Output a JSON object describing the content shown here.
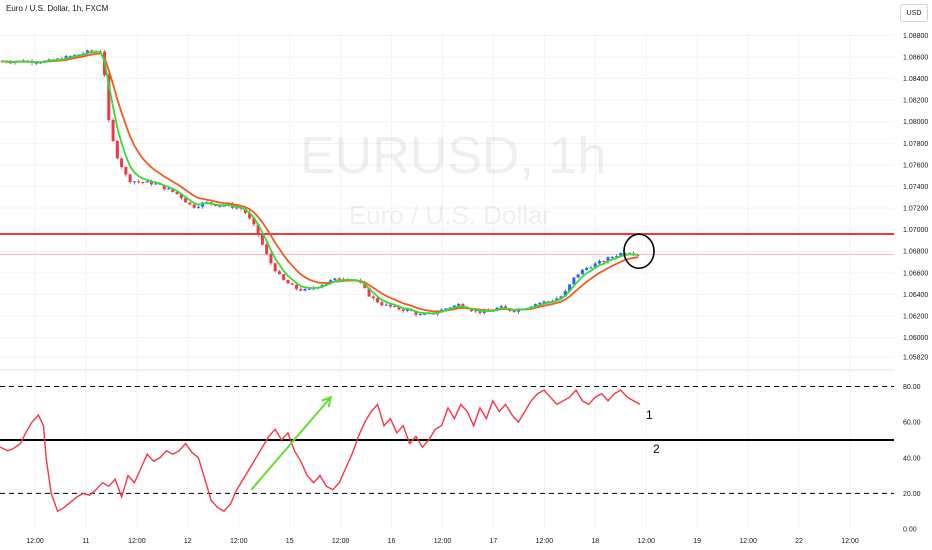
{
  "header": {
    "symbol_line": "Euro / U.S. Dollar, 1h, FXCM"
  },
  "currency_label": "USD",
  "watermark": {
    "symbol": "EURUSD, 1h",
    "description": "Euro / U.S. Dollar"
  },
  "colors": {
    "bull_candle": "#2962ff",
    "bear_candle": "#f23645",
    "fast_ma": "#33dd33",
    "slow_ma": "#f05a23",
    "resistance_line": "#f23645",
    "oscillator_line": "#f23645",
    "trend_arrow": "#66dd33",
    "axis_text": "#131722",
    "grid": "#f0f3fa"
  },
  "annotations": {
    "label_1": "1",
    "label_2": "2"
  },
  "chart_data": [
    {
      "type": "candlestick",
      "title": "EURUSD, 1h",
      "price_ticks": [
        "1.08800",
        "1.08600",
        "1.08400",
        "1.08200",
        "1.08000",
        "1.07800",
        "1.07600",
        "1.07400",
        "1.07200",
        "1.07000",
        "1.06800",
        "1.06600",
        "1.06400",
        "1.06200",
        "1.06000",
        "1.05820"
      ],
      "time_ticks": [
        "12:00",
        "11",
        "12:00",
        "12",
        "12:00",
        "15",
        "12:00",
        "16",
        "12:00",
        "17",
        "12:00",
        "18",
        "12:00",
        "19",
        "12:00",
        "22",
        "12:00"
      ],
      "ylim": [
        1.0582,
        1.0885
      ],
      "horizontal_lines": [
        {
          "name": "resistance",
          "price": 1.0696
        },
        {
          "name": "last-price",
          "price": 1.0677
        }
      ],
      "marked_area": {
        "shape": "circle",
        "price": 1.068,
        "note": "latest candles at resistance"
      },
      "moving_averages": [
        {
          "name": "fast-ma",
          "color": "#33dd33"
        },
        {
          "name": "slow-ma",
          "color": "#f05a23"
        }
      ],
      "price_path": [
        [
          0,
          1.0856
        ],
        [
          4,
          1.0856
        ],
        [
          7,
          1.0865
        ],
        [
          8,
          1.0866
        ],
        [
          8.5,
          1.08
        ],
        [
          9,
          1.0772
        ],
        [
          10,
          1.0746
        ],
        [
          11,
          1.0744
        ],
        [
          12,
          1.0743
        ],
        [
          13,
          1.0738
        ],
        [
          14,
          1.0732
        ],
        [
          15,
          1.0721
        ],
        [
          16,
          1.0725
        ],
        [
          17,
          1.0723
        ],
        [
          18,
          1.0722
        ],
        [
          19,
          1.0719
        ],
        [
          20,
          1.07
        ],
        [
          21,
          1.0672
        ],
        [
          22,
          1.0654
        ],
        [
          23,
          1.0646
        ],
        [
          24,
          1.0643
        ],
        [
          25,
          1.0649
        ],
        [
          26,
          1.0653
        ],
        [
          27,
          1.0656
        ],
        [
          28,
          1.0652
        ],
        [
          29,
          1.0637
        ],
        [
          30,
          1.063
        ],
        [
          31,
          1.0627
        ],
        [
          32,
          1.0625
        ],
        [
          33,
          1.062
        ],
        [
          34,
          1.0623
        ],
        [
          35,
          1.0628
        ],
        [
          36,
          1.0631
        ],
        [
          37,
          1.0625
        ],
        [
          38,
          1.0623
        ],
        [
          39,
          1.0628
        ],
        [
          40,
          1.0625
        ],
        [
          41,
          1.0628
        ],
        [
          42,
          1.0632
        ],
        [
          43,
          1.0634
        ],
        [
          44,
          1.0639
        ],
        [
          45,
          1.0658
        ],
        [
          46,
          1.0666
        ],
        [
          47,
          1.067
        ],
        [
          48,
          1.0676
        ],
        [
          49,
          1.068
        ],
        [
          50,
          1.0677
        ]
      ]
    },
    {
      "type": "line",
      "title": "",
      "y_ticks": [
        "80.00",
        "60.00",
        "40.00",
        "20.00",
        "0.00"
      ],
      "ylim": [
        0,
        82
      ],
      "levels": [
        80,
        50,
        20
      ],
      "trend_arrow": {
        "from": [
          16.5,
          22
        ],
        "to": [
          19.2,
          74
        ]
      },
      "series": [
        {
          "values": [
            [
              0,
              46
            ],
            [
              0.6,
              44
            ],
            [
              1,
              45
            ],
            [
              1.6,
              48
            ],
            [
              2,
              54
            ],
            [
              2.5,
              60
            ],
            [
              3,
              64
            ],
            [
              3.4,
              58
            ],
            [
              3.6,
              40
            ],
            [
              4,
              20
            ],
            [
              4.5,
              10
            ],
            [
              5,
              12
            ],
            [
              5.5,
              15
            ],
            [
              6,
              18
            ],
            [
              6.5,
              20
            ],
            [
              7,
              19
            ],
            [
              7.5,
              22
            ],
            [
              8,
              26
            ],
            [
              8.5,
              24
            ],
            [
              9,
              28
            ],
            [
              9.5,
              18
            ],
            [
              10,
              30
            ],
            [
              10.5,
              26
            ],
            [
              11,
              34
            ],
            [
              11.5,
              42
            ],
            [
              12,
              38
            ],
            [
              12.5,
              40
            ],
            [
              13,
              44
            ],
            [
              13.5,
              42
            ],
            [
              14,
              44
            ],
            [
              14.5,
              48
            ],
            [
              15,
              43
            ],
            [
              15.5,
              40
            ],
            [
              16,
              28
            ],
            [
              16.5,
              16
            ],
            [
              17,
              12
            ],
            [
              17.5,
              10
            ],
            [
              18,
              14
            ],
            [
              18.5,
              22
            ],
            [
              19,
              28
            ],
            [
              19.5,
              34
            ],
            [
              20,
              40
            ],
            [
              20.5,
              46
            ],
            [
              21,
              52
            ],
            [
              21.5,
              56
            ],
            [
              22,
              50
            ],
            [
              22.5,
              54
            ],
            [
              23,
              44
            ],
            [
              23.5,
              38
            ],
            [
              24,
              30
            ],
            [
              24.5,
              26
            ],
            [
              25,
              30
            ],
            [
              25.5,
              24
            ],
            [
              26,
              22
            ],
            [
              26.5,
              26
            ],
            [
              27,
              34
            ],
            [
              27.5,
              42
            ],
            [
              28,
              52
            ],
            [
              28.5,
              60
            ],
            [
              29,
              66
            ],
            [
              29.5,
              70
            ],
            [
              30,
              58
            ],
            [
              30.5,
              62
            ],
            [
              31,
              54
            ],
            [
              31.5,
              58
            ],
            [
              32,
              48
            ],
            [
              32.5,
              52
            ],
            [
              33,
              46
            ],
            [
              33.5,
              50
            ],
            [
              34,
              56
            ],
            [
              34.5,
              58
            ],
            [
              35,
              68
            ],
            [
              35.5,
              62
            ],
            [
              36,
              70
            ],
            [
              36.5,
              66
            ],
            [
              37,
              58
            ],
            [
              37.5,
              68
            ],
            [
              38,
              62
            ],
            [
              38.5,
              72
            ],
            [
              39,
              66
            ],
            [
              39.5,
              70
            ],
            [
              40,
              64
            ],
            [
              40.5,
              60
            ],
            [
              41,
              66
            ],
            [
              41.5,
              72
            ],
            [
              42,
              76
            ],
            [
              42.5,
              78
            ],
            [
              43,
              74
            ],
            [
              43.5,
              70
            ],
            [
              44,
              72
            ],
            [
              44.5,
              74
            ],
            [
              45,
              78
            ],
            [
              45.5,
              72
            ],
            [
              46,
              70
            ],
            [
              46.5,
              74
            ],
            [
              47,
              76
            ],
            [
              47.5,
              72
            ],
            [
              48,
              76
            ],
            [
              48.5,
              78
            ],
            [
              49,
              74
            ],
            [
              50,
              70
            ]
          ]
        }
      ]
    }
  ]
}
